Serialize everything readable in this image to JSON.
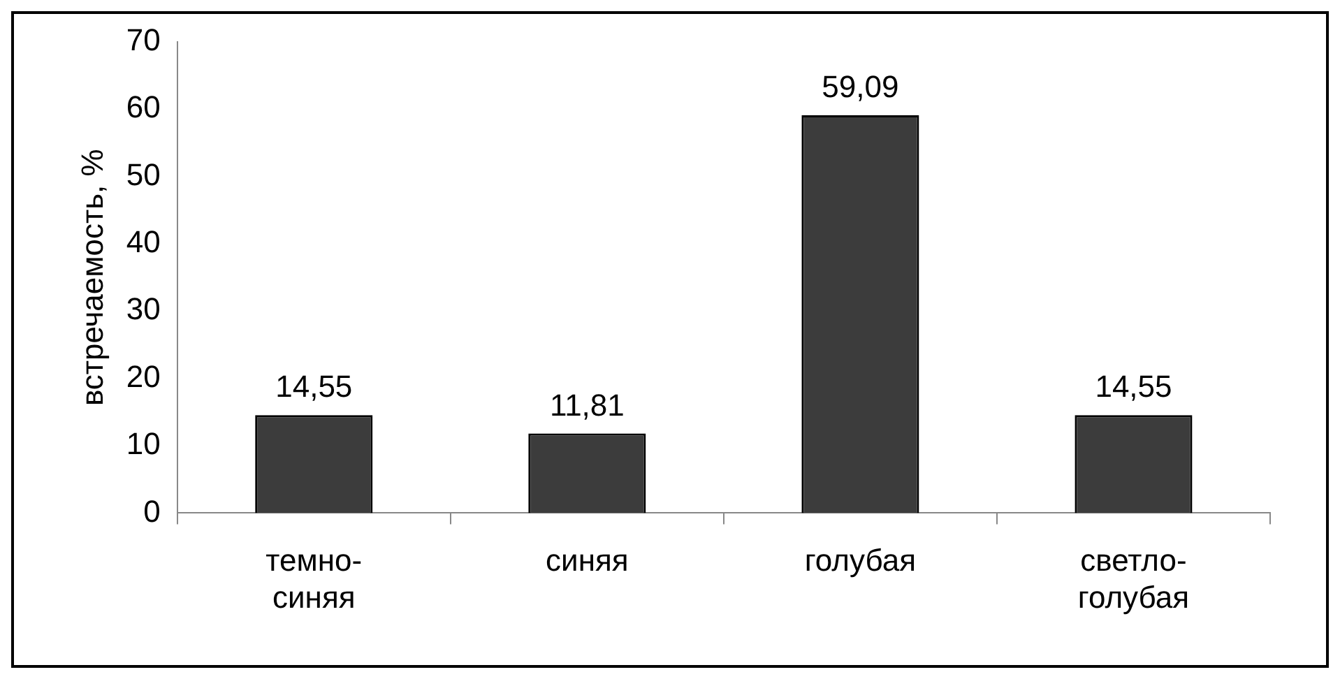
{
  "chart_data": {
    "type": "bar",
    "ylabel": "встречаемость, %",
    "categories": [
      "темно-синяя",
      "синяя",
      "голубая",
      "светло-голубая"
    ],
    "values": [
      14.55,
      11.81,
      59.09,
      14.55
    ],
    "value_labels": [
      "14,55",
      "11,81",
      "59,09",
      "14,55"
    ],
    "color": "#3c3c3c",
    "ylim": [
      0,
      70
    ],
    "yticks": [
      0,
      10,
      20,
      30,
      40,
      50,
      60,
      70
    ],
    "grid": false,
    "legend": false
  }
}
